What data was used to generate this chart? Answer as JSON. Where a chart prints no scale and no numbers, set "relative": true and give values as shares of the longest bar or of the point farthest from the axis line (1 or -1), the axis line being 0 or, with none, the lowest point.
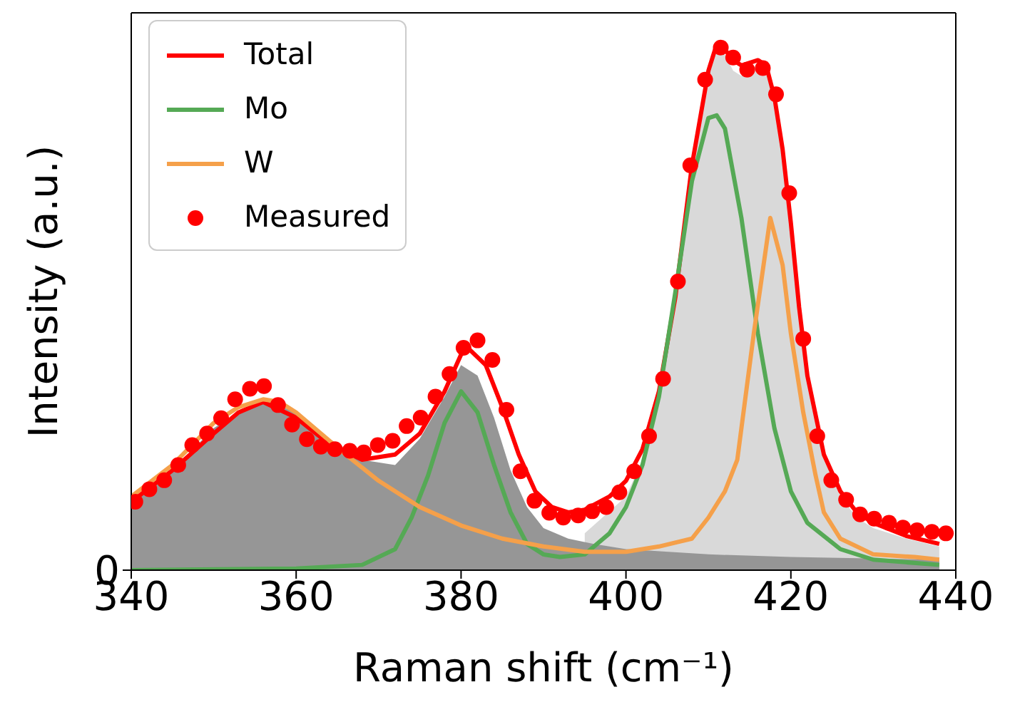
{
  "chart_data": {
    "type": "line",
    "relative": true,
    "xlabel": "Raman shift (cm⁻¹)",
    "ylabel": "Intensity (a.u.)",
    "xlim": [
      340,
      440
    ],
    "xticks": [
      340,
      360,
      380,
      400,
      420,
      440
    ],
    "annotations": [
      "0"
    ],
    "legend": "top left",
    "series": [
      {
        "type": "area",
        "color": "#d9d9d9",
        "x": [
          395,
          400,
          402,
          404,
          406,
          408,
          410,
          411,
          412,
          413,
          414,
          415,
          416,
          417,
          418,
          419,
          420,
          421,
          422,
          424,
          426,
          428,
          430,
          434,
          438
        ],
        "values": [
          0.07,
          0.14,
          0.21,
          0.33,
          0.52,
          0.77,
          0.95,
          0.99,
          0.98,
          0.95,
          0.94,
          0.955,
          0.96,
          0.95,
          0.89,
          0.78,
          0.64,
          0.48,
          0.36,
          0.21,
          0.14,
          0.1,
          0.08,
          0.06,
          0.045
        ]
      },
      {
        "type": "area",
        "color": "#969696",
        "x": [
          340,
          345,
          350,
          353,
          356,
          360,
          364,
          368,
          372,
          375,
          378,
          380,
          382,
          384,
          386,
          388,
          390,
          393,
          396,
          400,
          410,
          420,
          438
        ],
        "values": [
          0.13,
          0.19,
          0.27,
          0.3,
          0.325,
          0.3,
          0.25,
          0.21,
          0.2,
          0.25,
          0.33,
          0.39,
          0.37,
          0.29,
          0.19,
          0.12,
          0.08,
          0.06,
          0.05,
          0.04,
          0.03,
          0.025,
          0.02
        ]
      },
      {
        "name": "Total",
        "color": "#ff0000",
        "x": [
          340,
          345,
          350,
          353,
          356,
          360,
          364,
          368,
          372,
          375,
          378,
          380,
          381,
          383,
          385,
          387,
          389,
          391,
          393,
          395,
          398,
          400,
          402,
          404,
          406,
          408,
          410,
          411,
          412,
          413,
          414,
          415,
          416,
          417,
          418,
          419,
          420,
          421,
          422,
          424,
          426,
          428,
          430,
          434,
          438
        ],
        "values": [
          0.13,
          0.19,
          0.26,
          0.3,
          0.32,
          0.29,
          0.24,
          0.21,
          0.22,
          0.26,
          0.34,
          0.41,
          0.42,
          0.39,
          0.31,
          0.22,
          0.15,
          0.12,
          0.11,
          0.115,
          0.14,
          0.17,
          0.23,
          0.34,
          0.52,
          0.77,
          0.95,
          1,
          0.99,
          0.97,
          0.96,
          0.965,
          0.97,
          0.96,
          0.9,
          0.8,
          0.66,
          0.5,
          0.37,
          0.22,
          0.15,
          0.11,
          0.09,
          0.065,
          0.05
        ]
      },
      {
        "name": "Mo",
        "color": "#55a955",
        "x": [
          340,
          360,
          368,
          372,
          374,
          376,
          378,
          380,
          382,
          384,
          386,
          388,
          390,
          392,
          395,
          398,
          400,
          402,
          404,
          406,
          408,
          410,
          411,
          412,
          414,
          416,
          418,
          420,
          422,
          426,
          430,
          438
        ],
        "values": [
          0,
          0.003,
          0.01,
          0.04,
          0.1,
          0.18,
          0.28,
          0.34,
          0.3,
          0.2,
          0.11,
          0.05,
          0.03,
          0.025,
          0.03,
          0.07,
          0.12,
          0.2,
          0.33,
          0.53,
          0.74,
          0.86,
          0.865,
          0.84,
          0.67,
          0.45,
          0.27,
          0.15,
          0.09,
          0.04,
          0.02,
          0.01
        ]
      },
      {
        "name": "W",
        "color": "#f5a04a",
        "x": [
          340,
          345,
          350,
          353,
          356,
          358,
          360,
          363,
          366,
          370,
          375,
          380,
          385,
          390,
          395,
          400,
          404,
          408,
          410,
          412,
          413.5,
          414.5,
          415.5,
          417.5,
          419,
          420,
          421.5,
          423,
          424,
          426,
          430,
          435,
          438
        ],
        "values": [
          0.14,
          0.2,
          0.28,
          0.31,
          0.325,
          0.32,
          0.3,
          0.26,
          0.22,
          0.17,
          0.12,
          0.085,
          0.06,
          0.045,
          0.035,
          0.035,
          0.045,
          0.06,
          0.1,
          0.15,
          0.21,
          0.33,
          0.45,
          0.67,
          0.58,
          0.45,
          0.3,
          0.18,
          0.11,
          0.06,
          0.03,
          0.025,
          0.02
        ]
      },
      {
        "name": "Measured",
        "type": "scatter",
        "color": "#ff0000",
        "marker": "circle",
        "x": [
          340.5,
          342.2,
          344,
          345.7,
          347.4,
          349.2,
          350.9,
          352.6,
          354.4,
          356.1,
          357.8,
          359.5,
          361.3,
          363,
          364.7,
          366.5,
          368.2,
          369.9,
          371.7,
          373.4,
          375.1,
          376.9,
          378.6,
          380.3,
          382,
          383.8,
          385.5,
          387.2,
          388.9,
          390.7,
          392.4,
          394.2,
          395.9,
          397.6,
          399.2,
          401,
          402.8,
          404.5,
          406.3,
          407.8,
          409.6,
          411.5,
          413,
          414.7,
          416.6,
          418.2,
          419.8,
          421.5,
          423.2,
          424.9,
          426.7,
          428.4,
          430.1,
          431.9,
          433.6,
          435.3,
          437.1,
          438.8
        ],
        "values": [
          0.13,
          0.154,
          0.171,
          0.2,
          0.238,
          0.26,
          0.289,
          0.325,
          0.345,
          0.35,
          0.314,
          0.277,
          0.249,
          0.235,
          0.23,
          0.227,
          0.224,
          0.238,
          0.246,
          0.274,
          0.29,
          0.33,
          0.373,
          0.423,
          0.437,
          0.4,
          0.305,
          0.188,
          0.132,
          0.109,
          0.1,
          0.104,
          0.112,
          0.12,
          0.148,
          0.188,
          0.255,
          0.364,
          0.549,
          0.77,
          0.933,
          0.994,
          0.975,
          0.952,
          0.955,
          0.905,
          0.717,
          0.44,
          0.255,
          0.171,
          0.134,
          0.106,
          0.098,
          0.09,
          0.081,
          0.076,
          0.073,
          0.07
        ]
      }
    ]
  }
}
